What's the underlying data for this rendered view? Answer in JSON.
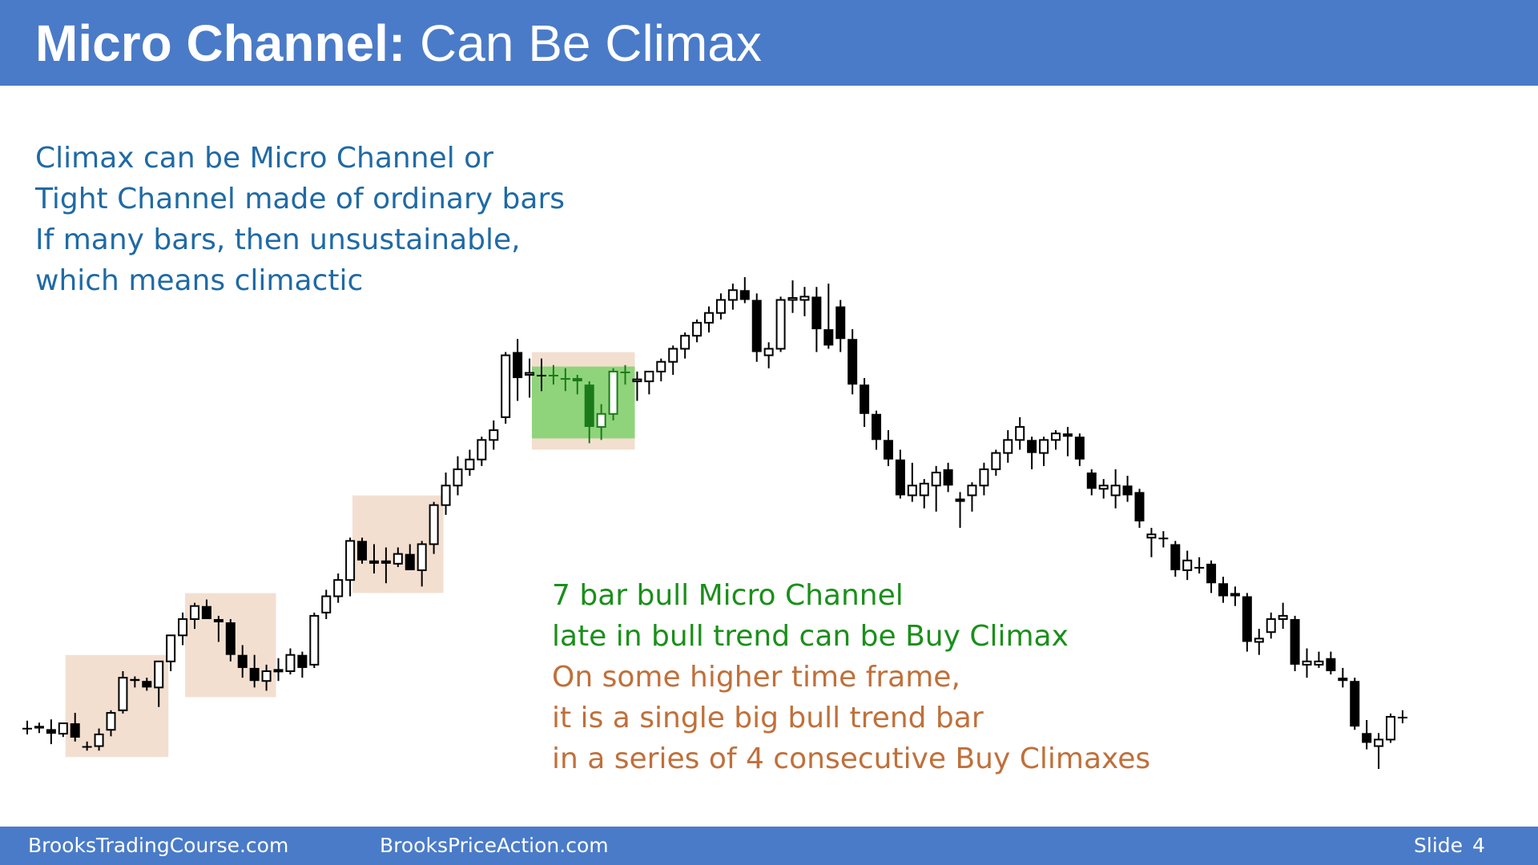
{
  "header": {
    "title_bold": "Micro Channel:",
    "title_rest": " Can Be Climax"
  },
  "notes": {
    "lines": [
      "Climax can be Micro Channel or",
      "Tight Channel made of ordinary bars",
      "If many bars, then unsustainable,",
      "which means climactic"
    ]
  },
  "annotation": {
    "green_lines": [
      "7 bar bull Micro Channel",
      "late in bull trend can be Buy Climax"
    ],
    "orange_lines": [
      "On some higher time frame,",
      "it is a single big bull trend bar",
      "in a series of 4 consecutive Buy Climaxes"
    ]
  },
  "footer": {
    "left": "BrooksTradingCourse.com",
    "middle": "BrooksPriceAction.com",
    "slide_label": "Slide",
    "slide_number": "4"
  },
  "chart_data": {
    "type": "candlestick",
    "y_scale": "price (unlabeled)",
    "bars": [
      {
        "o": 97.3,
        "h": 98.4,
        "l": 96.3,
        "c": 97.3
      },
      {
        "o": 97.6,
        "h": 98.1,
        "l": 96.5,
        "c": 97.2
      },
      {
        "o": 97.1,
        "h": 98.6,
        "l": 94.8,
        "c": 96.4
      },
      {
        "o": 96.4,
        "h": 98.0,
        "l": 95.9,
        "c": 98.0
      },
      {
        "o": 98.0,
        "h": 99.6,
        "l": 95.2,
        "c": 95.8
      },
      {
        "o": 94.5,
        "h": 95.2,
        "l": 93.8,
        "c": 94.5
      },
      {
        "o": 94.5,
        "h": 97.2,
        "l": 93.8,
        "c": 96.3
      },
      {
        "o": 97.0,
        "h": 100.0,
        "l": 96.0,
        "c": 99.6
      },
      {
        "o": 100.0,
        "h": 106.0,
        "l": 99.5,
        "c": 105.0
      },
      {
        "o": 104.8,
        "h": 105.2,
        "l": 103.5,
        "c": 104.5
      },
      {
        "o": 104.5,
        "h": 105.0,
        "l": 103.0,
        "c": 103.5
      },
      {
        "o": 103.5,
        "h": 107.5,
        "l": 100.5,
        "c": 107.5
      },
      {
        "o": 107.5,
        "h": 111.5,
        "l": 106.0,
        "c": 111.5
      },
      {
        "o": 111.5,
        "h": 115.0,
        "l": 110.0,
        "c": 114.0
      },
      {
        "o": 114.0,
        "h": 116.5,
        "l": 112.5,
        "c": 116.0
      },
      {
        "o": 116.0,
        "h": 117.0,
        "l": 115.0,
        "c": 114.0
      },
      {
        "o": 114.0,
        "h": 114.5,
        "l": 110.5,
        "c": 113.5
      },
      {
        "o": 113.5,
        "h": 114.0,
        "l": 107.5,
        "c": 108.5
      },
      {
        "o": 108.5,
        "h": 110.0,
        "l": 105.0,
        "c": 106.5
      },
      {
        "o": 106.5,
        "h": 108.5,
        "l": 103.5,
        "c": 104.5
      },
      {
        "o": 104.5,
        "h": 107.0,
        "l": 103.0,
        "c": 106.0
      },
      {
        "o": 106.0,
        "h": 108.0,
        "l": 104.5,
        "c": 106.2
      },
      {
        "o": 106.0,
        "h": 109.5,
        "l": 105.5,
        "c": 108.5
      },
      {
        "o": 108.5,
        "h": 109.0,
        "l": 105.0,
        "c": 106.5
      },
      {
        "o": 107.0,
        "h": 115.0,
        "l": 106.5,
        "c": 114.5
      },
      {
        "o": 115.0,
        "h": 118.5,
        "l": 114.0,
        "c": 117.5
      },
      {
        "o": 117.5,
        "h": 121.0,
        "l": 116.5,
        "c": 120.0
      },
      {
        "o": 120.0,
        "h": 126.5,
        "l": 117.5,
        "c": 126.0
      },
      {
        "o": 126.0,
        "h": 126.5,
        "l": 122.5,
        "c": 123.0
      },
      {
        "o": 123.0,
        "h": 125.5,
        "l": 121.0,
        "c": 122.5
      },
      {
        "o": 123.0,
        "h": 125.0,
        "l": 119.5,
        "c": 122.5
      },
      {
        "o": 122.5,
        "h": 125.0,
        "l": 122.0,
        "c": 124.0
      },
      {
        "o": 124.0,
        "h": 125.5,
        "l": 122.0,
        "c": 121.5
      },
      {
        "o": 121.5,
        "h": 126.0,
        "l": 119.0,
        "c": 125.5
      },
      {
        "o": 125.5,
        "h": 132.0,
        "l": 124.0,
        "c": 131.5
      },
      {
        "o": 131.5,
        "h": 136.5,
        "l": 130.0,
        "c": 134.5
      },
      {
        "o": 134.5,
        "h": 139.0,
        "l": 133.0,
        "c": 137.0
      },
      {
        "o": 137.0,
        "h": 140.0,
        "l": 136.0,
        "c": 138.5
      },
      {
        "o": 138.5,
        "h": 142.0,
        "l": 137.5,
        "c": 141.5
      },
      {
        "o": 141.5,
        "h": 144.5,
        "l": 140.0,
        "c": 143.0
      },
      {
        "o": 145.0,
        "h": 155.0,
        "l": 144.0,
        "c": 154.5
      },
      {
        "o": 155.0,
        "h": 157.0,
        "l": 147.5,
        "c": 151.0
      },
      {
        "o": 151.5,
        "h": 154.0,
        "l": 148.0,
        "c": 151.8
      },
      {
        "o": 151.5,
        "h": 154.0,
        "l": 149.0,
        "c": 151.5
      },
      {
        "o": 151.5,
        "h": 153.0,
        "l": 150.0,
        "c": 151.3
      },
      {
        "o": 151.0,
        "h": 152.5,
        "l": 149.0,
        "c": 151.0
      },
      {
        "o": 151.0,
        "h": 151.5,
        "l": 148.5,
        "c": 150.5
      },
      {
        "o": 150.0,
        "h": 150.5,
        "l": 141.0,
        "c": 143.5
      },
      {
        "o": 143.5,
        "h": 147.0,
        "l": 141.5,
        "c": 145.5
      },
      {
        "o": 145.5,
        "h": 152.5,
        "l": 144.5,
        "c": 152.0
      },
      {
        "o": 152.0,
        "h": 153.0,
        "l": 150.0,
        "c": 152.0
      },
      {
        "o": 150.5,
        "h": 152.0,
        "l": 147.5,
        "c": 150.8
      },
      {
        "o": 150.5,
        "h": 152.0,
        "l": 148.5,
        "c": 152.0
      },
      {
        "o": 152.0,
        "h": 154.0,
        "l": 150.5,
        "c": 153.5
      },
      {
        "o": 153.5,
        "h": 156.0,
        "l": 151.5,
        "c": 155.5
      },
      {
        "o": 155.5,
        "h": 158.0,
        "l": 154.0,
        "c": 157.5
      },
      {
        "o": 157.5,
        "h": 160.0,
        "l": 156.5,
        "c": 159.5
      },
      {
        "o": 159.5,
        "h": 162.0,
        "l": 158.0,
        "c": 161.0
      },
      {
        "o": 161.0,
        "h": 164.0,
        "l": 160.0,
        "c": 163.0
      },
      {
        "o": 163.0,
        "h": 165.5,
        "l": 161.5,
        "c": 164.5
      },
      {
        "o": 164.5,
        "h": 166.5,
        "l": 162.5,
        "c": 163.0
      },
      {
        "o": 163.0,
        "h": 164.0,
        "l": 153.5,
        "c": 155.0
      },
      {
        "o": 154.5,
        "h": 156.5,
        "l": 152.5,
        "c": 155.5
      },
      {
        "o": 155.5,
        "h": 163.5,
        "l": 155.0,
        "c": 163.0
      },
      {
        "o": 163.0,
        "h": 166.0,
        "l": 161.0,
        "c": 163.3
      },
      {
        "o": 163.0,
        "h": 165.0,
        "l": 160.5,
        "c": 163.5
      },
      {
        "o": 163.5,
        "h": 165.0,
        "l": 155.0,
        "c": 158.5
      },
      {
        "o": 158.5,
        "h": 165.5,
        "l": 155.5,
        "c": 156.0
      },
      {
        "o": 162.0,
        "h": 163.0,
        "l": 155.0,
        "c": 157.0
      },
      {
        "o": 157.0,
        "h": 158.5,
        "l": 148.5,
        "c": 150.0
      },
      {
        "o": 150.0,
        "h": 151.0,
        "l": 143.5,
        "c": 145.5
      },
      {
        "o": 145.5,
        "h": 146.0,
        "l": 140.0,
        "c": 141.5
      },
      {
        "o": 141.5,
        "h": 143.0,
        "l": 137.5,
        "c": 138.5
      },
      {
        "o": 138.5,
        "h": 140.0,
        "l": 132.5,
        "c": 133.0
      },
      {
        "o": 133.0,
        "h": 138.0,
        "l": 132.0,
        "c": 134.5
      },
      {
        "o": 133.0,
        "h": 135.5,
        "l": 131.0,
        "c": 134.8
      },
      {
        "o": 134.5,
        "h": 137.5,
        "l": 130.5,
        "c": 136.5
      },
      {
        "o": 137.0,
        "h": 138.0,
        "l": 133.5,
        "c": 134.5
      },
      {
        "o": 132.5,
        "h": 133.5,
        "l": 128.0,
        "c": 132.0
      },
      {
        "o": 133.0,
        "h": 135.0,
        "l": 130.5,
        "c": 134.5
      },
      {
        "o": 134.5,
        "h": 138.0,
        "l": 133.0,
        "c": 137.0
      },
      {
        "o": 137.0,
        "h": 140.0,
        "l": 136.0,
        "c": 139.5
      },
      {
        "o": 139.5,
        "h": 143.0,
        "l": 138.0,
        "c": 141.5
      },
      {
        "o": 141.5,
        "h": 145.0,
        "l": 140.0,
        "c": 143.5
      },
      {
        "o": 141.5,
        "h": 142.0,
        "l": 137.0,
        "c": 139.5
      },
      {
        "o": 139.5,
        "h": 142.0,
        "l": 137.5,
        "c": 141.5
      },
      {
        "o": 141.5,
        "h": 143.0,
        "l": 140.0,
        "c": 142.5
      },
      {
        "o": 142.5,
        "h": 143.5,
        "l": 139.0,
        "c": 142.0
      },
      {
        "o": 142.0,
        "h": 142.5,
        "l": 137.5,
        "c": 138.5
      },
      {
        "o": 136.5,
        "h": 137.0,
        "l": 133.0,
        "c": 134.0
      },
      {
        "o": 134.0,
        "h": 135.5,
        "l": 132.5,
        "c": 134.5
      },
      {
        "o": 133.0,
        "h": 137.0,
        "l": 131.0,
        "c": 134.5
      },
      {
        "o": 134.5,
        "h": 136.0,
        "l": 132.0,
        "c": 133.0
      },
      {
        "o": 133.5,
        "h": 134.0,
        "l": 128.0,
        "c": 129.0
      },
      {
        "o": 126.5,
        "h": 128.0,
        "l": 123.5,
        "c": 127.0
      },
      {
        "o": 126.5,
        "h": 127.5,
        "l": 125.0,
        "c": 126.5
      },
      {
        "o": 125.5,
        "h": 126.0,
        "l": 120.5,
        "c": 121.5
      },
      {
        "o": 121.5,
        "h": 124.5,
        "l": 120.0,
        "c": 123.0
      },
      {
        "o": 122.0,
        "h": 123.5,
        "l": 121.0,
        "c": 122.0
      },
      {
        "o": 122.5,
        "h": 123.0,
        "l": 118.0,
        "c": 119.5
      },
      {
        "o": 119.5,
        "h": 120.5,
        "l": 116.5,
        "c": 117.5
      },
      {
        "o": 118.0,
        "h": 119.0,
        "l": 116.0,
        "c": 117.5
      },
      {
        "o": 117.5,
        "h": 118.0,
        "l": 109.0,
        "c": 110.5
      },
      {
        "o": 110.5,
        "h": 112.5,
        "l": 108.5,
        "c": 111.0
      },
      {
        "o": 112.0,
        "h": 115.0,
        "l": 111.0,
        "c": 114.0
      },
      {
        "o": 114.0,
        "h": 116.5,
        "l": 112.5,
        "c": 114.5
      },
      {
        "o": 114.0,
        "h": 114.5,
        "l": 106.0,
        "c": 107.0
      },
      {
        "o": 107.0,
        "h": 109.5,
        "l": 105.0,
        "c": 107.5
      },
      {
        "o": 107.0,
        "h": 109.0,
        "l": 106.5,
        "c": 107.5
      },
      {
        "o": 108.0,
        "h": 109.0,
        "l": 105.5,
        "c": 106.0
      },
      {
        "o": 105.0,
        "h": 106.5,
        "l": 103.5,
        "c": 104.5
      },
      {
        "o": 104.5,
        "h": 105.0,
        "l": 97.0,
        "c": 97.5
      },
      {
        "o": 96.5,
        "h": 98.5,
        "l": 94.0,
        "c": 95.0
      },
      {
        "o": 94.5,
        "h": 96.5,
        "l": 91.0,
        "c": 95.5
      },
      {
        "o": 95.5,
        "h": 99.5,
        "l": 95.0,
        "c": 99.0
      },
      {
        "o": 99.0,
        "h": 100.0,
        "l": 98.0,
        "c": 98.8
      }
    ],
    "highlights": [
      {
        "label": "buy climax 1",
        "from_bar": 4,
        "to_bar": 11,
        "color": "#f3dfd0"
      },
      {
        "label": "buy climax 2",
        "from_bar": 14,
        "to_bar": 20,
        "color": "#f3dfd0"
      },
      {
        "label": "buy climax 3",
        "from_bar": 28,
        "to_bar": 34,
        "color": "#f3dfd0"
      },
      {
        "label": "7 bar bull micro channel",
        "from_bar": 43,
        "to_bar": 50,
        "color": "#f3dfd0",
        "inner_color": "#8fd47a"
      }
    ]
  }
}
